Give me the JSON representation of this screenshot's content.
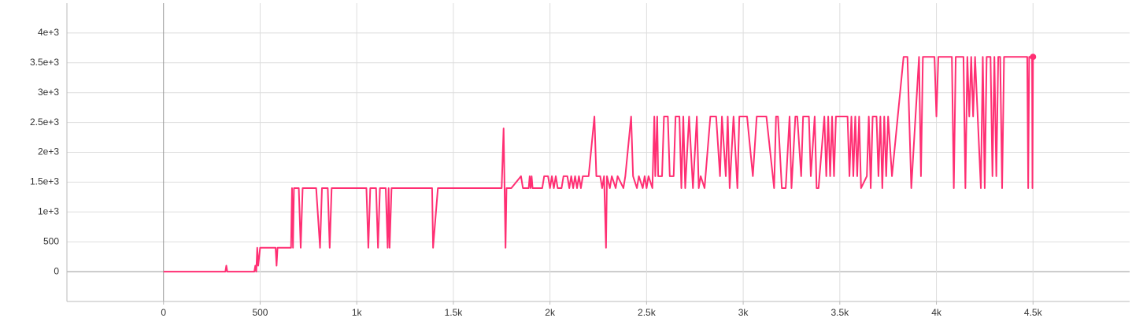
{
  "chart_data": {
    "type": "line",
    "color": "#ff2f73",
    "grid": true,
    "xlim": [
      -500,
      5000
    ],
    "xticks": [
      0,
      500,
      {
        "value": 1000,
        "label": "1k"
      },
      {
        "value": 1500,
        "label": "1.5k"
      },
      {
        "value": 2000,
        "label": "2k"
      },
      {
        "value": 2500,
        "label": "2.5k"
      },
      {
        "value": 3000,
        "label": "3k"
      },
      {
        "value": 3500,
        "label": "3.5k"
      },
      {
        "value": 4000,
        "label": "4k"
      },
      {
        "value": 4500,
        "label": "4.5k"
      }
    ],
    "ylim": [
      -500,
      4500
    ],
    "yticks": [
      0,
      500,
      {
        "value": 1000,
        "label": "1e+3"
      },
      {
        "value": 1500,
        "label": "1.5e+3"
      },
      {
        "value": 2000,
        "label": "2e+3"
      },
      {
        "value": 2500,
        "label": "2.5e+3"
      },
      {
        "value": 3000,
        "label": "3e+3"
      },
      {
        "value": 3500,
        "label": "3.5e+3"
      },
      {
        "value": 4000,
        "label": "4e+3"
      }
    ],
    "x": [
      0,
      320,
      325,
      330,
      470,
      475,
      480,
      485,
      490,
      500,
      580,
      585,
      590,
      660,
      665,
      670,
      675,
      700,
      710,
      720,
      790,
      810,
      820,
      850,
      860,
      870,
      1050,
      1060,
      1070,
      1100,
      1110,
      1120,
      1150,
      1160,
      1165,
      1170,
      1180,
      1390,
      1395,
      1420,
      1750,
      1760,
      1770,
      1775,
      1800,
      1850,
      1860,
      1890,
      1895,
      1900,
      1905,
      1910,
      1960,
      1970,
      1990,
      2000,
      2010,
      2020,
      2030,
      2040,
      2060,
      2070,
      2090,
      2100,
      2110,
      2120,
      2130,
      2140,
      2150,
      2160,
      2170,
      2200,
      2230,
      2240,
      2260,
      2270,
      2280,
      2290,
      2295,
      2310,
      2320,
      2340,
      2350,
      2380,
      2390,
      2420,
      2430,
      2450,
      2460,
      2480,
      2490,
      2500,
      2510,
      2530,
      2540,
      2545,
      2555,
      2560,
      2580,
      2590,
      2610,
      2620,
      2640,
      2650,
      2670,
      2680,
      2690,
      2700,
      2720,
      2740,
      2760,
      2770,
      2780,
      2800,
      2830,
      2860,
      2880,
      2890,
      2910,
      2920,
      2930,
      2950,
      2970,
      2980,
      3020,
      3050,
      3070,
      3120,
      3160,
      3170,
      3180,
      3200,
      3220,
      3240,
      3250,
      3270,
      3280,
      3300,
      3310,
      3340,
      3350,
      3370,
      3380,
      3390,
      3420,
      3430,
      3440,
      3450,
      3460,
      3470,
      3480,
      3540,
      3550,
      3560,
      3570,
      3580,
      3590,
      3600,
      3610,
      3640,
      3650,
      3660,
      3670,
      3690,
      3700,
      3710,
      3720,
      3730,
      3740,
      3750,
      3770,
      3800,
      3830,
      3850,
      3870,
      3910,
      3920,
      3930,
      3990,
      4000,
      4010,
      4080,
      4090,
      4100,
      4140,
      4150,
      4160,
      4170,
      4180,
      4190,
      4200,
      4230,
      4240,
      4250,
      4260,
      4280,
      4290,
      4300,
      4310,
      4320,
      4330,
      4340,
      4350,
      4470,
      4475,
      4480,
      4495,
      4497,
      4500
    ],
    "values": [
      0,
      0,
      100,
      0,
      0,
      100,
      0,
      400,
      100,
      400,
      400,
      100,
      400,
      400,
      1400,
      400,
      1400,
      1400,
      400,
      1400,
      1400,
      400,
      1400,
      1400,
      400,
      1400,
      1400,
      400,
      1400,
      1400,
      400,
      1400,
      1400,
      400,
      1400,
      400,
      1400,
      1400,
      400,
      1400,
      1400,
      2400,
      400,
      1400,
      1400,
      1600,
      1400,
      1400,
      1600,
      1400,
      1600,
      1400,
      1400,
      1600,
      1600,
      1400,
      1600,
      1400,
      1600,
      1400,
      1400,
      1600,
      1600,
      1400,
      1600,
      1400,
      1600,
      1400,
      1600,
      1400,
      1600,
      1600,
      2600,
      1600,
      1600,
      1400,
      1600,
      400,
      1600,
      1400,
      1600,
      1400,
      1600,
      1400,
      1600,
      2600,
      1600,
      1400,
      1600,
      1400,
      1600,
      1400,
      1600,
      1400,
      2600,
      1600,
      2600,
      1600,
      1600,
      2600,
      2600,
      1600,
      1600,
      2600,
      2600,
      1400,
      2600,
      1400,
      2600,
      1400,
      2600,
      1400,
      1600,
      1400,
      2600,
      2600,
      1600,
      2600,
      1600,
      2600,
      1400,
      2600,
      1400,
      2600,
      2600,
      1600,
      2600,
      2600,
      1400,
      2600,
      2600,
      1400,
      1400,
      2600,
      1400,
      2600,
      2600,
      1600,
      2600,
      2600,
      1600,
      2600,
      1400,
      1400,
      2600,
      1600,
      2600,
      1600,
      2600,
      1600,
      2600,
      2600,
      1600,
      2600,
      1600,
      2600,
      1600,
      2600,
      1400,
      1600,
      2600,
      1400,
      2600,
      2600,
      1600,
      2600,
      1400,
      2600,
      1600,
      2600,
      1600,
      2600,
      3600,
      3600,
      1400,
      3600,
      1600,
      3600,
      3600,
      2600,
      3600,
      3600,
      1400,
      3600,
      3600,
      1400,
      3600,
      2600,
      3600,
      2600,
      3600,
      1400,
      3600,
      1400,
      3600,
      3600,
      1600,
      3600,
      1600,
      3600,
      3600,
      1400,
      3600,
      3600,
      1400,
      3600,
      3600,
      1400,
      3600
    ]
  }
}
